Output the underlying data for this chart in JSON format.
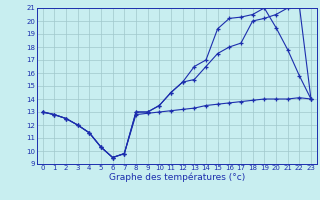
{
  "hours": [
    0,
    1,
    2,
    3,
    4,
    5,
    6,
    7,
    8,
    9,
    10,
    11,
    12,
    13,
    14,
    15,
    16,
    17,
    18,
    19,
    20,
    21,
    22,
    23
  ],
  "line_min": [
    13.0,
    12.8,
    12.5,
    12.0,
    11.4,
    10.3,
    9.5,
    9.8,
    12.8,
    12.9,
    13.0,
    13.1,
    13.2,
    13.3,
    13.5,
    13.6,
    13.7,
    13.8,
    13.9,
    14.0,
    14.0,
    14.0,
    14.1,
    14.0
  ],
  "line_mid": [
    13.0,
    12.8,
    12.5,
    12.0,
    11.4,
    10.3,
    9.5,
    9.8,
    13.0,
    13.0,
    13.5,
    14.5,
    15.3,
    15.5,
    16.5,
    17.5,
    18.0,
    18.3,
    20.0,
    20.2,
    20.5,
    21.0,
    21.2,
    14.0
  ],
  "line_max": [
    13.0,
    12.8,
    12.5,
    12.0,
    11.4,
    10.3,
    9.5,
    9.8,
    13.0,
    13.0,
    13.5,
    14.5,
    15.3,
    16.5,
    17.0,
    19.4,
    20.2,
    20.3,
    20.5,
    21.0,
    19.5,
    17.8,
    15.8,
    14.0
  ],
  "line_color": "#1c2ead",
  "bg_color": "#c8eef0",
  "grid_color": "#a0c8cc",
  "xlabel": "Graphe des températures (°c)",
  "ylim": [
    9,
    21
  ],
  "xlim": [
    0,
    23
  ],
  "yticks": [
    9,
    10,
    11,
    12,
    13,
    14,
    15,
    16,
    17,
    18,
    19,
    20,
    21
  ],
  "xticks": [
    0,
    1,
    2,
    3,
    4,
    5,
    6,
    7,
    8,
    9,
    10,
    11,
    12,
    13,
    14,
    15,
    16,
    17,
    18,
    19,
    20,
    21,
    22,
    23
  ],
  "xlabel_fontsize": 6.5,
  "tick_fontsize": 5.0
}
